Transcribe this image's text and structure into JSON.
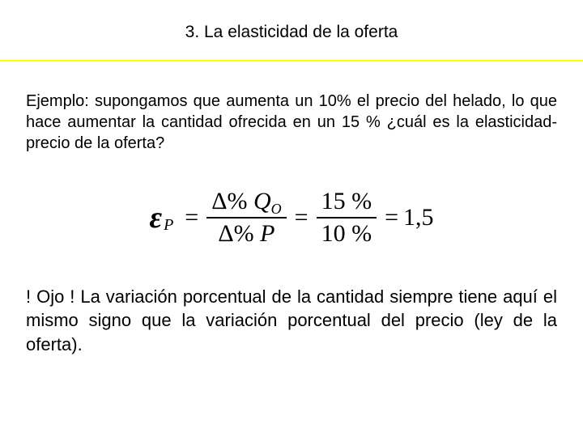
{
  "title": "3. La elasticidad de la oferta",
  "example_text": "Ejemplo: supongamos que aumenta un 10% el precio del helado, lo que hace aumentar la cantidad ofrecida en un 15 % ¿cuál es la elasticidad-precio de la oferta?",
  "formula": {
    "symbol": "ε",
    "subscript": "P",
    "frac1_num_delta": "Δ%",
    "frac1_num_var": "Q",
    "frac1_num_varsub": "O",
    "frac1_den_delta": "Δ%",
    "frac1_den_var": "P",
    "frac2_num": "15 %",
    "frac2_den": "10 %",
    "result": "1,5"
  },
  "note_text": "! Ojo ! La variación porcentual de la cantidad siempre tiene aquí el mismo signo que la variación porcentual del precio (ley de la oferta).",
  "colors": {
    "underline": "#ffff00",
    "background": "#ffffff",
    "text": "#000000"
  }
}
